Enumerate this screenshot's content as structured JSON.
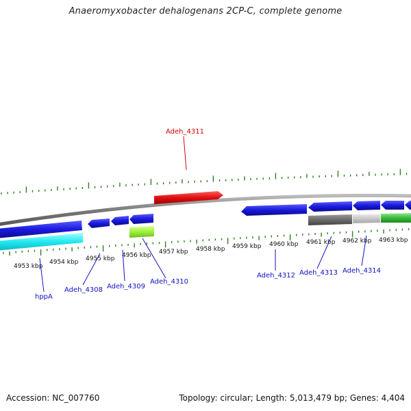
{
  "title": "Anaeromyxobacter dehalogenans 2CP-C, complete genome",
  "footer": {
    "accession": "Accession: NC_007760",
    "summary": "Topology: circular; Length: 5,013,479 bp; Genes: 4,404"
  },
  "colors": {
    "backbone": "#8a8a8a",
    "tick": "#2e7d1e",
    "forward_label": "#d40000",
    "reverse_label": "#1010c0",
    "gene_blue": "#1a1adc",
    "gene_red": "#e01010",
    "gene_cyan": "#22e8f0",
    "gene_lime": "#9ef03a",
    "gene_gray": "#6a6a6a",
    "gene_lightgray": "#c8c8c8",
    "gene_green": "#3cb83c"
  },
  "scale_labels": [
    "4953 kbp",
    "4954 kbp",
    "4955 kbp",
    "4956 kbp",
    "4957 kbp",
    "4958 kbp",
    "4959 kbp",
    "4960 kbp",
    "4961 kbp",
    "4962 kbp",
    "4963 kbp"
  ],
  "gene_labels": [
    {
      "text": "Adeh_4311",
      "strand": "forward"
    },
    {
      "text": "hppA",
      "strand": "reverse"
    },
    {
      "text": "Adeh_4308",
      "strand": "reverse"
    },
    {
      "text": "Adeh_4309",
      "strand": "reverse"
    },
    {
      "text": "Adeh_4310",
      "strand": "reverse"
    },
    {
      "text": "Adeh_4312",
      "strand": "reverse"
    },
    {
      "text": "Adeh_4313",
      "strand": "reverse"
    },
    {
      "text": "Adeh_4314",
      "strand": "reverse"
    }
  ]
}
